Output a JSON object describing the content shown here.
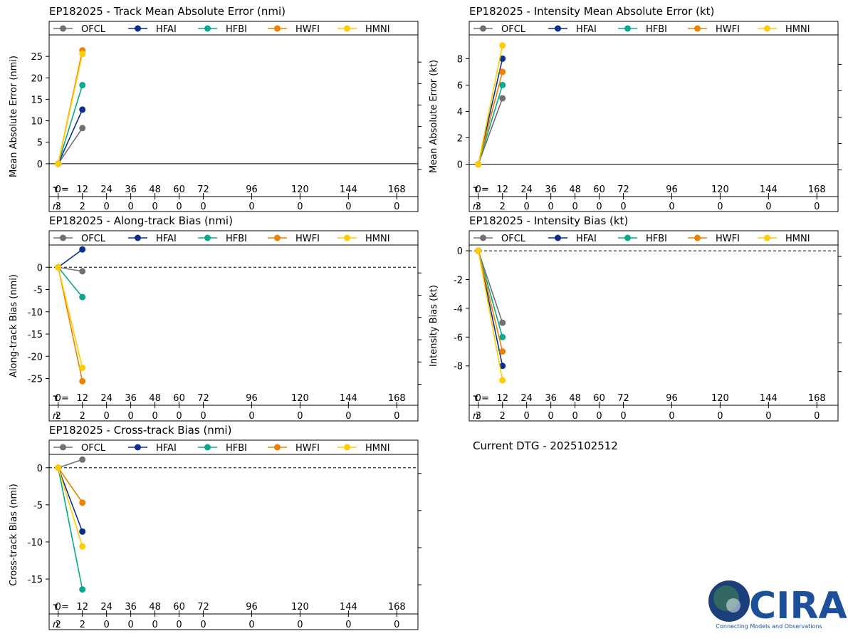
{
  "colors": {
    "OFCL": "#707070",
    "HFAI": "#0a2f8c",
    "HFBI": "#0aa88c",
    "HWFI": "#ee8000",
    "HMNI": "#ffcc00"
  },
  "legend_order": [
    "OFCL",
    "HFAI",
    "HFBI",
    "HWFI",
    "HMNI"
  ],
  "tau_label": "τ = ",
  "n_label": "n",
  "tau_hours": [
    0,
    12,
    24,
    36,
    48,
    60,
    72,
    96,
    120,
    144,
    168
  ],
  "chart_data": [
    {
      "id": "track-mae",
      "type": "line",
      "title": "EP182025 - Track Mean Absolute Error (nmi)",
      "ylabel": "Mean Absolute Error (nmi)",
      "ylim": [
        -3.5,
        30
      ],
      "yticks": [
        0,
        5,
        10,
        15,
        20,
        25
      ],
      "zero_line": "solid",
      "x": [
        0,
        12
      ],
      "series": [
        {
          "name": "OFCL",
          "values": [
            0,
            8.3
          ]
        },
        {
          "name": "HFAI",
          "values": [
            0,
            12.6
          ]
        },
        {
          "name": "HFBI",
          "values": [
            0,
            18.3
          ]
        },
        {
          "name": "HWFI",
          "values": [
            0,
            26.4
          ]
        },
        {
          "name": "HMNI",
          "values": [
            0,
            25.6
          ]
        }
      ],
      "n_values": [
        "3",
        "2",
        "0",
        "0",
        "0",
        "0",
        "0",
        "0",
        "0",
        "0",
        "0"
      ]
    },
    {
      "id": "intensity-mae",
      "type": "line",
      "title": "EP182025 - Intensity Mean Absolute Error (kt)",
      "ylabel": "Mean Absolute Error (kt)",
      "ylim": [
        -1.1,
        9.8
      ],
      "yticks": [
        0,
        2,
        4,
        6,
        8
      ],
      "zero_line": "solid",
      "x": [
        0,
        12
      ],
      "series": [
        {
          "name": "OFCL",
          "values": [
            0,
            5
          ]
        },
        {
          "name": "HFAI",
          "values": [
            0,
            8
          ]
        },
        {
          "name": "HFBI",
          "values": [
            0,
            6
          ]
        },
        {
          "name": "HWFI",
          "values": [
            0,
            7
          ]
        },
        {
          "name": "HMNI",
          "values": [
            0,
            9
          ]
        }
      ],
      "n_values": [
        "3",
        "2",
        "0",
        "0",
        "0",
        "0",
        "0",
        "0",
        "0",
        "0",
        "0"
      ]
    },
    {
      "id": "along-track-bias",
      "type": "line",
      "title": "EP182025 - Along-track Bias (nmi)",
      "ylabel": "Along-track Bias (nmi)",
      "ylim": [
        -27,
        5
      ],
      "yticks": [
        0,
        -5,
        -10,
        -15,
        -20,
        -25
      ],
      "zero_line": "dashed",
      "x": [
        0,
        12
      ],
      "series": [
        {
          "name": "OFCL",
          "values": [
            0,
            -0.9
          ]
        },
        {
          "name": "HFAI",
          "values": [
            0,
            4.0
          ]
        },
        {
          "name": "HFBI",
          "values": [
            0,
            -6.7
          ]
        },
        {
          "name": "HWFI",
          "values": [
            0,
            -25.6
          ]
        },
        {
          "name": "HMNI",
          "values": [
            0,
            -22.6
          ]
        }
      ],
      "n_values": [
        "2",
        "2",
        "0",
        "0",
        "0",
        "0",
        "0",
        "0",
        "0",
        "0",
        "0"
      ]
    },
    {
      "id": "intensity-bias",
      "type": "line",
      "title": "EP182025 - Intensity Bias (kt)",
      "ylabel": "Intensity Bias (kt)",
      "ylim": [
        -9.5,
        0.4
      ],
      "yticks": [
        0,
        -2,
        -4,
        -6,
        -8
      ],
      "zero_line": "dashed",
      "x": [
        0,
        12
      ],
      "series": [
        {
          "name": "OFCL",
          "values": [
            0,
            -5
          ]
        },
        {
          "name": "HFAI",
          "values": [
            0,
            -8
          ]
        },
        {
          "name": "HFBI",
          "values": [
            0,
            -6
          ]
        },
        {
          "name": "HWFI",
          "values": [
            0,
            -7
          ]
        },
        {
          "name": "HMNI",
          "values": [
            0,
            -9
          ]
        }
      ],
      "n_values": [
        "3",
        "2",
        "0",
        "0",
        "0",
        "0",
        "0",
        "0",
        "0",
        "0",
        "0"
      ]
    },
    {
      "id": "cross-track-bias",
      "type": "line",
      "title": "EP182025 - Cross-track Bias (nmi)",
      "ylabel": "Cross-track Bias (nmi)",
      "ylim": [
        -17.3,
        1.8
      ],
      "yticks": [
        0,
        -5,
        -10,
        -15
      ],
      "zero_line": "dashed",
      "x": [
        0,
        12
      ],
      "series": [
        {
          "name": "OFCL",
          "values": [
            0,
            1.1
          ]
        },
        {
          "name": "HFAI",
          "values": [
            0,
            -8.6
          ]
        },
        {
          "name": "HFBI",
          "values": [
            0,
            -16.4
          ]
        },
        {
          "name": "HWFI",
          "values": [
            0,
            -4.7
          ]
        },
        {
          "name": "HMNI",
          "values": [
            0,
            -10.6
          ]
        }
      ],
      "n_values": [
        "2",
        "2",
        "0",
        "0",
        "0",
        "0",
        "0",
        "0",
        "0",
        "0",
        "0"
      ]
    }
  ],
  "current_dtg": "Current DTG - 2025102512",
  "logo": {
    "text": "CIRA",
    "tagline": "Connecting Models and Observations"
  }
}
